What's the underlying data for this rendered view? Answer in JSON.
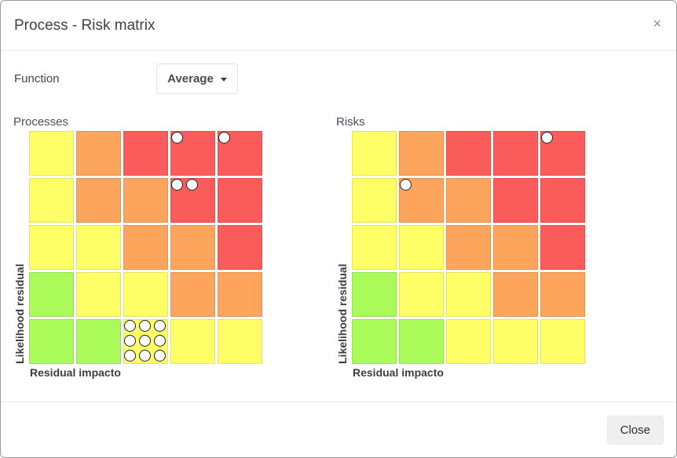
{
  "window": {
    "title": "Process - Risk matrix",
    "close_icon": "×"
  },
  "function_row": {
    "label": "Function",
    "dropdown_value": "Average"
  },
  "axes": {
    "y_label": "Likelihood residual",
    "x_label": "Residual impacto"
  },
  "cell_colors": {
    "G": "#aafa5a",
    "Y": "#feff66",
    "O": "#fda55c",
    "R": "#fa5c5c"
  },
  "matrices": [
    {
      "title": "Processes",
      "grid": [
        [
          "Y",
          "O",
          "R",
          "R",
          "R"
        ],
        [
          "Y",
          "O",
          "O",
          "R",
          "R"
        ],
        [
          "Y",
          "Y",
          "O",
          "O",
          "R"
        ],
        [
          "G",
          "Y",
          "Y",
          "O",
          "O"
        ],
        [
          "G",
          "G",
          "Y",
          "Y",
          "Y"
        ]
      ],
      "dots": [
        {
          "row": 0,
          "col": 3,
          "count": 1
        },
        {
          "row": 0,
          "col": 4,
          "count": 1
        },
        {
          "row": 1,
          "col": 3,
          "count": 2
        },
        {
          "row": 4,
          "col": 2,
          "count": 9
        }
      ]
    },
    {
      "title": "Risks",
      "grid": [
        [
          "Y",
          "O",
          "R",
          "R",
          "R"
        ],
        [
          "Y",
          "O",
          "O",
          "R",
          "R"
        ],
        [
          "Y",
          "Y",
          "O",
          "O",
          "R"
        ],
        [
          "G",
          "Y",
          "Y",
          "O",
          "O"
        ],
        [
          "G",
          "G",
          "Y",
          "Y",
          "Y"
        ]
      ],
      "dots": [
        {
          "row": 0,
          "col": 4,
          "count": 1
        },
        {
          "row": 1,
          "col": 1,
          "count": 1
        }
      ]
    }
  ],
  "footer": {
    "close_label": "Close"
  }
}
